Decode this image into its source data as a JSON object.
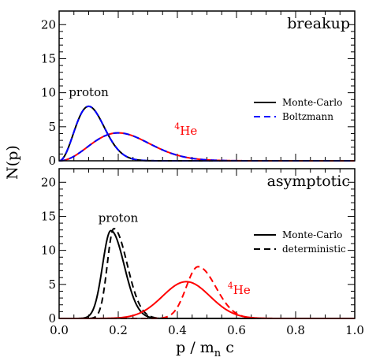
{
  "chart_data": {
    "type": "line",
    "xlabel": "p / m",
    "xlabel_sub": "n",
    "xlabel_suffix": " c",
    "ylabel": "N(p)",
    "xlim": [
      0.0,
      1.0
    ],
    "x_ticks": [
      "0.0",
      "0.2",
      "0.4",
      "0.6",
      "0.8",
      "1.0"
    ],
    "colors": {
      "proton": "#000000",
      "helium": "#ff0000",
      "boltzmann": "#0000ff"
    },
    "panels": [
      {
        "title": "breakup",
        "ylim": [
          0,
          22
        ],
        "y_ticks": [
          "0",
          "5",
          "10",
          "15",
          "20"
        ],
        "annotations": {
          "proton": {
            "text": "proton",
            "x": 0.1,
            "y": 9.5
          },
          "helium": {
            "sup": "4",
            "text": "He",
            "x": 0.39,
            "y": 3.8
          }
        },
        "legend": [
          {
            "label": "Monte-Carlo",
            "style": "solid",
            "color": "#000000"
          },
          {
            "label": "Boltzmann",
            "style": "dashed",
            "color": "#0000ff"
          }
        ],
        "series": [
          {
            "group": "proton",
            "style": "solid",
            "color": "#000000",
            "shape": "maxwell",
            "peak_x": 0.1,
            "peak_y": 8.0
          },
          {
            "group": "proton",
            "style": "dashed",
            "color": "#0000ff",
            "shape": "maxwell",
            "peak_x": 0.1,
            "peak_y": 8.0
          },
          {
            "group": "helium",
            "style": "solid",
            "color": "#ff0000",
            "shape": "maxwell",
            "peak_x": 0.2,
            "peak_y": 4.1
          },
          {
            "group": "helium",
            "style": "dashed",
            "color": "#0000ff",
            "shape": "maxwell",
            "peak_x": 0.2,
            "peak_y": 4.1
          }
        ]
      },
      {
        "title": "asymptotic",
        "ylim": [
          0,
          22
        ],
        "y_ticks": [
          "0",
          "5",
          "10",
          "15",
          "20"
        ],
        "annotations": {
          "proton": {
            "text": "proton",
            "x": 0.2,
            "y": 14.2
          },
          "helium": {
            "sup": "4",
            "text": "He",
            "x": 0.57,
            "y": 3.6
          }
        },
        "legend": [
          {
            "label": "Monte-Carlo",
            "style": "solid",
            "color": "#000000"
          },
          {
            "label": "deterministic",
            "style": "dashed",
            "color": "#000000"
          }
        ],
        "series": [
          {
            "group": "proton",
            "style": "solid",
            "color": "#000000",
            "shape": "skew",
            "peak_x": 0.175,
            "peak_y": 12.9,
            "width_left": 0.028,
            "width_right": 0.045
          },
          {
            "group": "proton",
            "style": "dashed",
            "color": "#000000",
            "shape": "skew",
            "peak_x": 0.185,
            "peak_y": 13.2,
            "width_left": 0.022,
            "width_right": 0.045
          },
          {
            "group": "helium",
            "style": "solid",
            "color": "#ff0000",
            "shape": "skew",
            "peak_x": 0.43,
            "peak_y": 5.4,
            "width_left": 0.08,
            "width_right": 0.08
          },
          {
            "group": "helium",
            "style": "dashed",
            "color": "#ff0000",
            "shape": "skew",
            "peak_x": 0.47,
            "peak_y": 7.6,
            "width_left": 0.04,
            "width_right": 0.06
          }
        ]
      }
    ]
  }
}
